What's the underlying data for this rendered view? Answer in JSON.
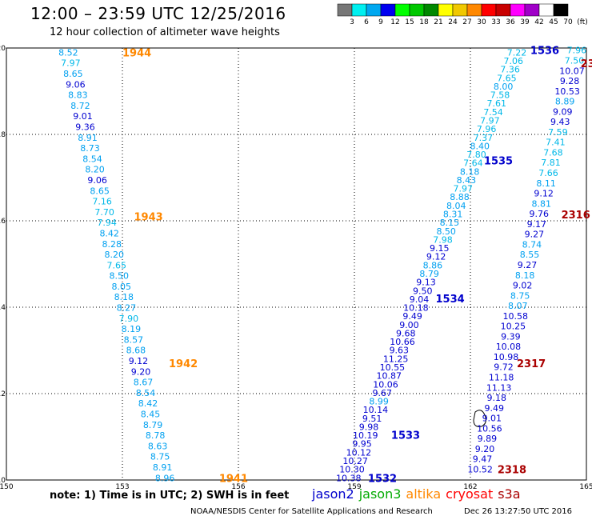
{
  "header": {
    "title": "12:00 – 23:59 UTC 12/25/2016",
    "subtitle": "12 hour collection of altimeter wave heights"
  },
  "colorbar": {
    "labels": [
      "3",
      "6",
      "9",
      "12",
      "15",
      "18",
      "21",
      "24",
      "27",
      "30",
      "33",
      "36",
      "39",
      "42",
      "45",
      "70",
      "(ft)"
    ],
    "colors": [
      "#777777",
      "#00f0f0",
      "#00a8f0",
      "#0000f0",
      "#00ff00",
      "#00c800",
      "#008800",
      "#ffff00",
      "#f0c800",
      "#ff8800",
      "#ff0000",
      "#c80000",
      "#ff00ff",
      "#a000c8",
      "#ffffff",
      "#000000"
    ]
  },
  "footer": {
    "note": "note: 1) Time is in UTC; 2) SWH is in feet",
    "credit": "NOAA/NESDIS Center for Satellite Applications and Research",
    "timestamp": "Dec 26 13:27:50 UTC 2016",
    "satellites": [
      {
        "name": "jason2",
        "color": "#0000cc"
      },
      {
        "name": "jason3",
        "color": "#00aa00"
      },
      {
        "name": "altika",
        "color": "#ff8800"
      },
      {
        "name": "cryosat",
        "color": "#ff0000"
      },
      {
        "name": "s3a",
        "color": "#aa0000"
      }
    ]
  },
  "chart_data": {
    "type": "scatter",
    "xlim": [
      150,
      165
    ],
    "ylim": [
      10,
      20
    ],
    "xticks": [
      "150",
      "153",
      "156",
      "159",
      "162",
      "165"
    ],
    "yticks": [
      "10",
      "12",
      "14",
      "16",
      "18",
      "20"
    ],
    "grid": true,
    "tracks": [
      {
        "satellite": "altika",
        "labels": [
          {
            "text": "1944",
            "x": 153.0,
            "y": 19.9
          },
          {
            "text": "1943",
            "x": 153.3,
            "y": 16.1
          },
          {
            "text": "1942",
            "x": 154.2,
            "y": 12.7
          },
          {
            "text": "1941",
            "x": 155.5,
            "y": 10.05
          }
        ],
        "start": [
          151.6,
          19.9
        ],
        "end": [
          154.1,
          10.05
        ],
        "values": [
          "8.52",
          "7.97",
          "8.65",
          "9.06",
          "8.83",
          "8.72",
          "9.01",
          "9.36",
          "8.91",
          "8.73",
          "8.54",
          "8.20",
          "9.06",
          "8.65",
          "7.16",
          "7.70",
          "7.94",
          "8.42",
          "8.28",
          "8.20",
          "7.65",
          "8.50",
          "8.05",
          "8.18",
          "8.27",
          "7.90",
          "8.19",
          "8.57",
          "8.68",
          "9.12",
          "9.20",
          "8.67",
          "8.54",
          "8.42",
          "8.45",
          "8.79",
          "8.78",
          "8.63",
          "8.75",
          "8.91",
          "8.96"
        ]
      },
      {
        "satellite": "jason2",
        "labels": [
          {
            "text": "1536",
            "x": 163.55,
            "y": 19.95
          },
          {
            "text": "1535",
            "x": 162.35,
            "y": 17.4
          },
          {
            "text": "1534",
            "x": 161.1,
            "y": 14.2
          },
          {
            "text": "1533",
            "x": 159.95,
            "y": 11.05
          },
          {
            "text": "1532",
            "x": 159.35,
            "y": 10.05
          }
        ],
        "start": [
          163.2,
          19.9
        ],
        "end": [
          158.85,
          10.05
        ],
        "values": [
          "7.22",
          "7.06",
          "7.36",
          "7.65",
          "8.00",
          "7.58",
          "7.61",
          "7.54",
          "7.97",
          "7.96",
          "7.37",
          "8.40",
          "7.80",
          "7.64",
          "8.18",
          "8.43",
          "7.97",
          "8.88",
          "8.04",
          "8.31",
          "8.15",
          "8.50",
          "7.98",
          "9.15",
          "9.12",
          "8.86",
          "8.79",
          "9.13",
          "9.50",
          "9.04",
          "10.18",
          "9.49",
          "9.00",
          "9.68",
          "10.66",
          "9.63",
          "11.25",
          "10.55",
          "10.87",
          "10.06",
          "9.67",
          "8.99",
          "10.14",
          "9.51",
          "9.98",
          "10.19",
          "9.95",
          "10.12",
          "10.27",
          "10.30",
          "10.38"
        ]
      },
      {
        "satellite": "s3a",
        "labels": [
          {
            "text": "23",
            "x": 164.85,
            "y": 19.65
          },
          {
            "text": "2316",
            "x": 164.35,
            "y": 16.15
          },
          {
            "text": "2317",
            "x": 163.2,
            "y": 12.7
          },
          {
            "text": "2318",
            "x": 162.7,
            "y": 10.25
          }
        ],
        "start": [
          164.75,
          19.95
        ],
        "end": [
          162.25,
          10.25
        ],
        "values": [
          "7.96",
          "7.50",
          "10.07",
          "9.28",
          "10.53",
          "8.89",
          "9.09",
          "9.43",
          "7.59",
          "7.41",
          "7.68",
          "7.81",
          "7.66",
          "8.11",
          "9.12",
          "8.81",
          "9.76",
          "9.17",
          "9.27",
          "8.74",
          "8.55",
          "9.27",
          "8.18",
          "9.02",
          "8.75",
          "8.07",
          "10.58",
          "10.25",
          "9.39",
          "10.08",
          "10.98",
          "9.72",
          "11.18",
          "11.13",
          "9.18",
          "9.49",
          "9.01",
          "10.56",
          "9.89",
          "9.20",
          "9.47",
          "10.52"
        ]
      }
    ]
  }
}
